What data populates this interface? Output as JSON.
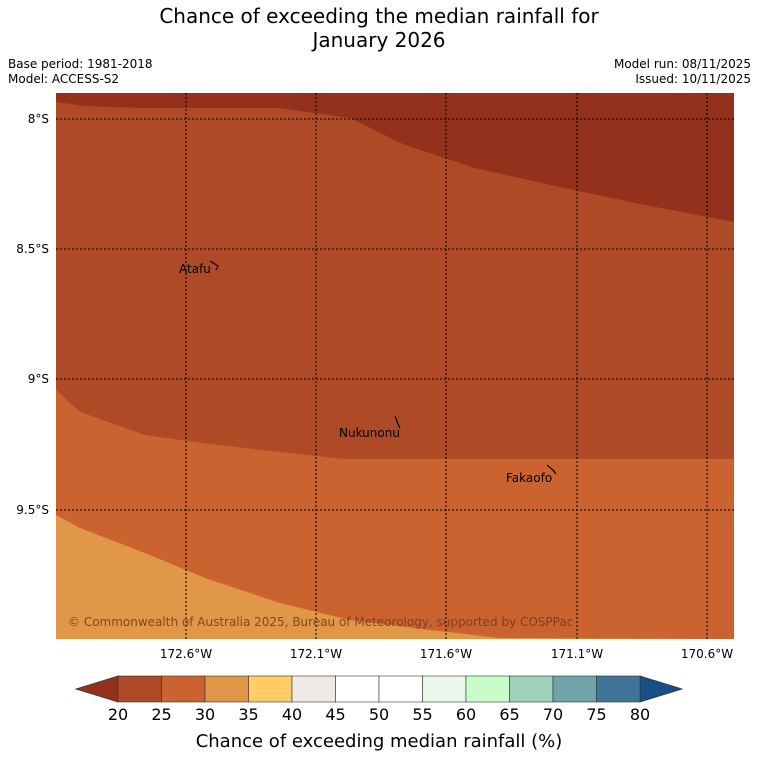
{
  "header": {
    "title_line1": "Chance of exceeding the median rainfall for",
    "title_line2": "January 2026",
    "base_period": "Base period: 1981-2018",
    "model": "Model: ACCESS-S2",
    "model_run": "Model run: 08/11/2025",
    "issued": "Issued: 10/11/2025"
  },
  "map": {
    "lat_labels": [
      "8°S",
      "8.5°S",
      "9°S",
      "9.5°S"
    ],
    "lon_labels": [
      "172.6°W",
      "172.1°W",
      "171.6°W",
      "171.1°W",
      "170.6°W"
    ],
    "places": [
      "Atafu",
      "Nukunonu",
      "Fakaofo"
    ],
    "copyright": "© Commonwealth of Australia 2025, Bureau of Meteorology, supported by COSPPac",
    "band_colors": {
      "15-20": "#94311c",
      "20-25": "#ae4a26",
      "25-30": "#cb6330",
      "30-35": "#e09748"
    }
  },
  "colorbar": {
    "ticks": [
      "20",
      "25",
      "30",
      "35",
      "40",
      "45",
      "50",
      "55",
      "60",
      "65",
      "70",
      "75",
      "80"
    ],
    "colors": [
      "#ae4a26",
      "#cb6330",
      "#e09748",
      "#ffcc66",
      "#eeeae6",
      "#ffffff",
      "#ffffff",
      "#eaf7ea",
      "#c8fcc8",
      "#9fd0b9",
      "#6fa5a8",
      "#3f7698"
    ],
    "under_color": "#94311c",
    "over_color": "#174f86",
    "label": "Chance of exceeding median rainfall (%)"
  }
}
